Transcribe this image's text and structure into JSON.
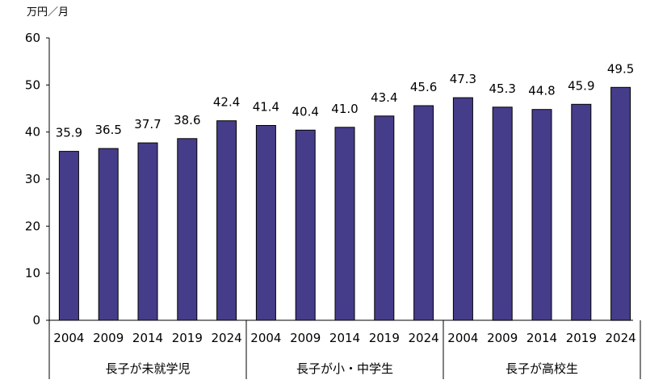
{
  "chart_data": {
    "type": "bar",
    "y_unit": "万円／月",
    "ylim": [
      0,
      60
    ],
    "yticks": [
      0,
      10,
      20,
      30,
      40,
      50,
      60
    ],
    "bar_color": "#453d8a",
    "groups": [
      {
        "label": "長子が未就学児",
        "categories": [
          "2004",
          "2009",
          "2014",
          "2019",
          "2024"
        ],
        "values": [
          35.9,
          36.5,
          37.7,
          38.6,
          42.4
        ],
        "value_labels": [
          "35.9",
          "36.5",
          "37.7",
          "38.6",
          "42.4"
        ]
      },
      {
        "label": "長子が小・中学生",
        "categories": [
          "2004",
          "2009",
          "2014",
          "2019",
          "2024"
        ],
        "values": [
          41.4,
          40.4,
          41.0,
          43.4,
          45.6
        ],
        "value_labels": [
          "41.4",
          "40.4",
          "41.0",
          "43.4",
          "45.6"
        ]
      },
      {
        "label": "長子が高校生",
        "categories": [
          "2004",
          "2009",
          "2014",
          "2019",
          "2024"
        ],
        "values": [
          47.3,
          45.3,
          44.8,
          45.9,
          49.5
        ],
        "value_labels": [
          "47.3",
          "45.3",
          "44.8",
          "45.9",
          "49.5"
        ]
      }
    ],
    "grid": false,
    "legend": "none"
  }
}
